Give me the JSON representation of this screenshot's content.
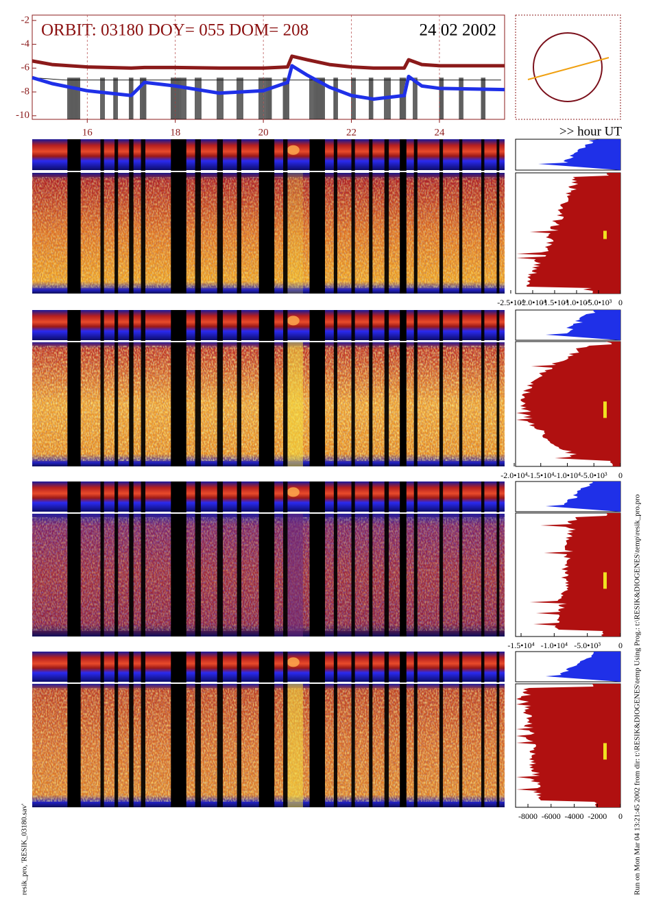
{
  "chart_data": [
    {
      "type": "line",
      "title": "ORBIT: 03180 DOY=  055 DOM=  208",
      "date": "24 02 2002",
      "xlabel": ">> hour UT",
      "x": [
        14.75,
        15.2,
        16,
        17,
        17.3,
        18,
        19,
        20,
        20.55,
        20.65,
        21,
        21.5,
        22,
        22.5,
        23.2,
        23.3,
        23.6,
        24,
        25.48
      ],
      "series": [
        {
          "color": "#8b1a1a",
          "values": [
            -5.4,
            -5.7,
            -5.9,
            -6.0,
            -5.95,
            -5.95,
            -6.0,
            -6.0,
            -5.9,
            -5.0,
            -5.3,
            -5.7,
            -5.9,
            -6.0,
            -6.0,
            -5.3,
            -5.7,
            -5.8,
            -5.8
          ]
        },
        {
          "color": "#1f30e8",
          "values": [
            -6.8,
            -7.3,
            -7.9,
            -8.3,
            -7.2,
            -7.5,
            -8.1,
            -7.9,
            -7.2,
            -5.8,
            -6.6,
            -7.6,
            -8.3,
            -8.6,
            -8.3,
            -6.7,
            -7.5,
            -7.7,
            -7.8
          ]
        }
      ],
      "xlim": [
        14.75,
        25.48
      ],
      "ylim": [
        -10.3,
        -1.55
      ],
      "xticks": [
        16,
        18,
        20,
        22,
        24
      ],
      "yticks": [
        -2,
        -4,
        -6,
        -8,
        -10
      ]
    },
    {
      "type": "profile",
      "xlim": [
        -23900,
        0
      ],
      "xticks": [
        {
          "value": -25000,
          "label": "-2.5•10⁴"
        },
        {
          "value": -20000,
          "label": "-2.0•10⁴"
        },
        {
          "value": -15000,
          "label": "-1.5•10⁴"
        },
        {
          "value": -10000,
          "label": "-1.0•10⁴"
        },
        {
          "value": -5000,
          "label": "-5.0•10³"
        },
        0
      ]
    },
    {
      "type": "profile",
      "xlim": [
        -19740,
        0
      ],
      "xticks": [
        {
          "value": -20000,
          "label": "-2.0•10⁴"
        },
        {
          "value": -15000,
          "label": "-1.5•10⁴"
        },
        {
          "value": -10000,
          "label": "-1.0•10⁴"
        },
        {
          "value": -5000,
          "label": "-5.0•10³"
        },
        0
      ]
    },
    {
      "type": "profile",
      "xlim": [
        -15830,
        0
      ],
      "xticks": [
        {
          "value": -15000,
          "label": "-1.5•10⁴"
        },
        {
          "value": -10000,
          "label": "-1.0•10⁴"
        },
        {
          "value": -5000,
          "label": "-5.0•10³"
        },
        0
      ]
    },
    {
      "type": "profile",
      "xlim": [
        -9070,
        0
      ],
      "xticks": [
        -8000,
        -6000,
        -4000,
        -2000,
        0
      ]
    }
  ],
  "footer": {
    "left": "resik_pro, 'RESIK_03180.sav'",
    "right": "Run on Mon Mar 04 13:21:45 2002  from dir: t:\\RESIK&DIOGENES\\temp Using Prog.: t:\\RESIK&DIOGENES\\temp\\resik_pro.pro"
  }
}
